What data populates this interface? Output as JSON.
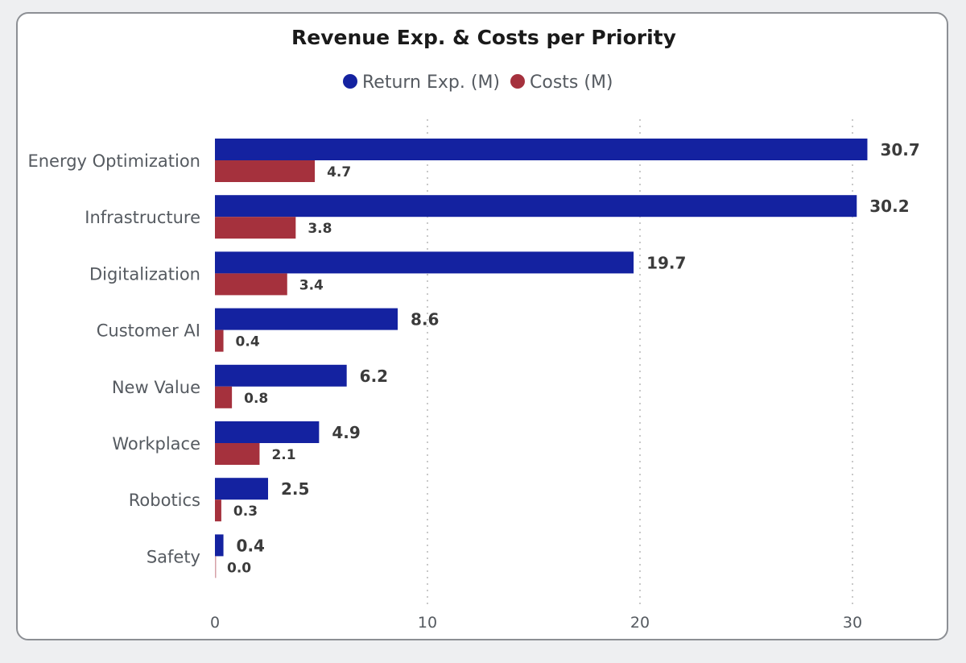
{
  "chart_data": {
    "type": "bar",
    "orientation": "horizontal",
    "title": "Revenue Exp. & Costs per Priority",
    "categories": [
      "Energy Optimization",
      "Infrastructure",
      "Digitalization",
      "Customer AI",
      "New Value",
      "Workplace",
      "Robotics",
      "Safety"
    ],
    "series": [
      {
        "name": "Return Exp. (M)",
        "color": "#1422a0",
        "values": [
          30.7,
          30.2,
          19.7,
          8.6,
          6.2,
          4.9,
          2.5,
          0.4
        ],
        "labels": [
          "30.7",
          "30.2",
          "19.7",
          "8.6",
          "6.2",
          "4.9",
          "2.5",
          "0.4"
        ]
      },
      {
        "name": "Costs (M)",
        "color": "#a5313d",
        "values": [
          4.7,
          3.8,
          3.4,
          0.4,
          0.8,
          2.1,
          0.3,
          0.0
        ],
        "labels": [
          "4.7",
          "3.8",
          "3.4",
          "0.4",
          "0.8",
          "2.1",
          "0.3",
          "0.0"
        ]
      }
    ],
    "xlim": [
      0,
      30.7
    ],
    "xticks": [
      0,
      10,
      20,
      30
    ],
    "xtick_labels": [
      "0",
      "10",
      "20",
      "30"
    ],
    "grid": true,
    "legend_position": "top-center"
  }
}
